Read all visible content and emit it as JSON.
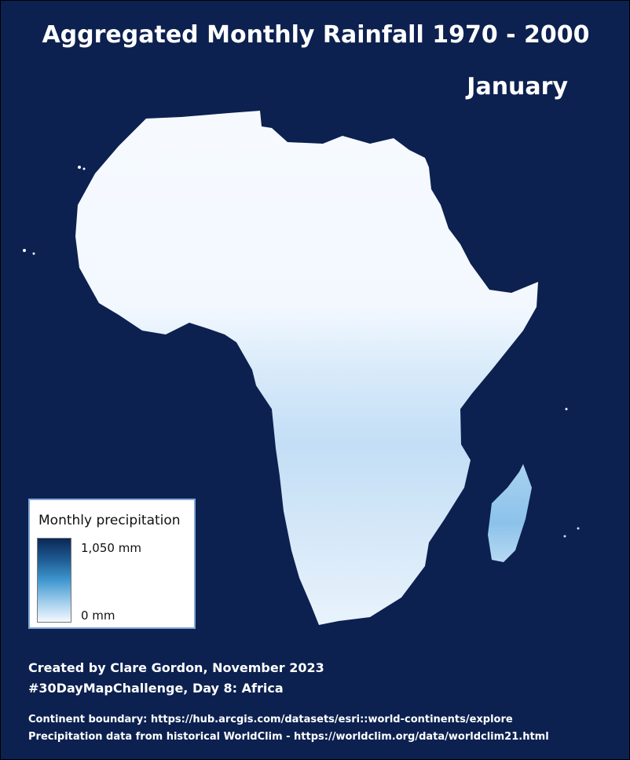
{
  "title": "Aggregated Monthly Rainfall 1970 - 2000",
  "month": "January",
  "colors": {
    "background": "#0c2150",
    "land_dry": "#f4f9ff",
    "land_wet": "#8fc3ea",
    "ramp_high": "#0b2856",
    "ramp_low": "#f5f9ff"
  },
  "legend": {
    "title": "Monthly precipitation",
    "max_label": "1,050 mm",
    "min_label": "0 mm"
  },
  "credits": {
    "line1": "Created by Clare Gordon, November 2023",
    "line2": "#30DayMapChallenge, Day 8: Africa"
  },
  "sources": {
    "line1": "Continent boundary: https://hub.arcgis.com/datasets/esri::world-continents/explore",
    "line2": "Precipitation data from historical WorldClim - https://worldclim.org/data/worldclim21.html"
  }
}
